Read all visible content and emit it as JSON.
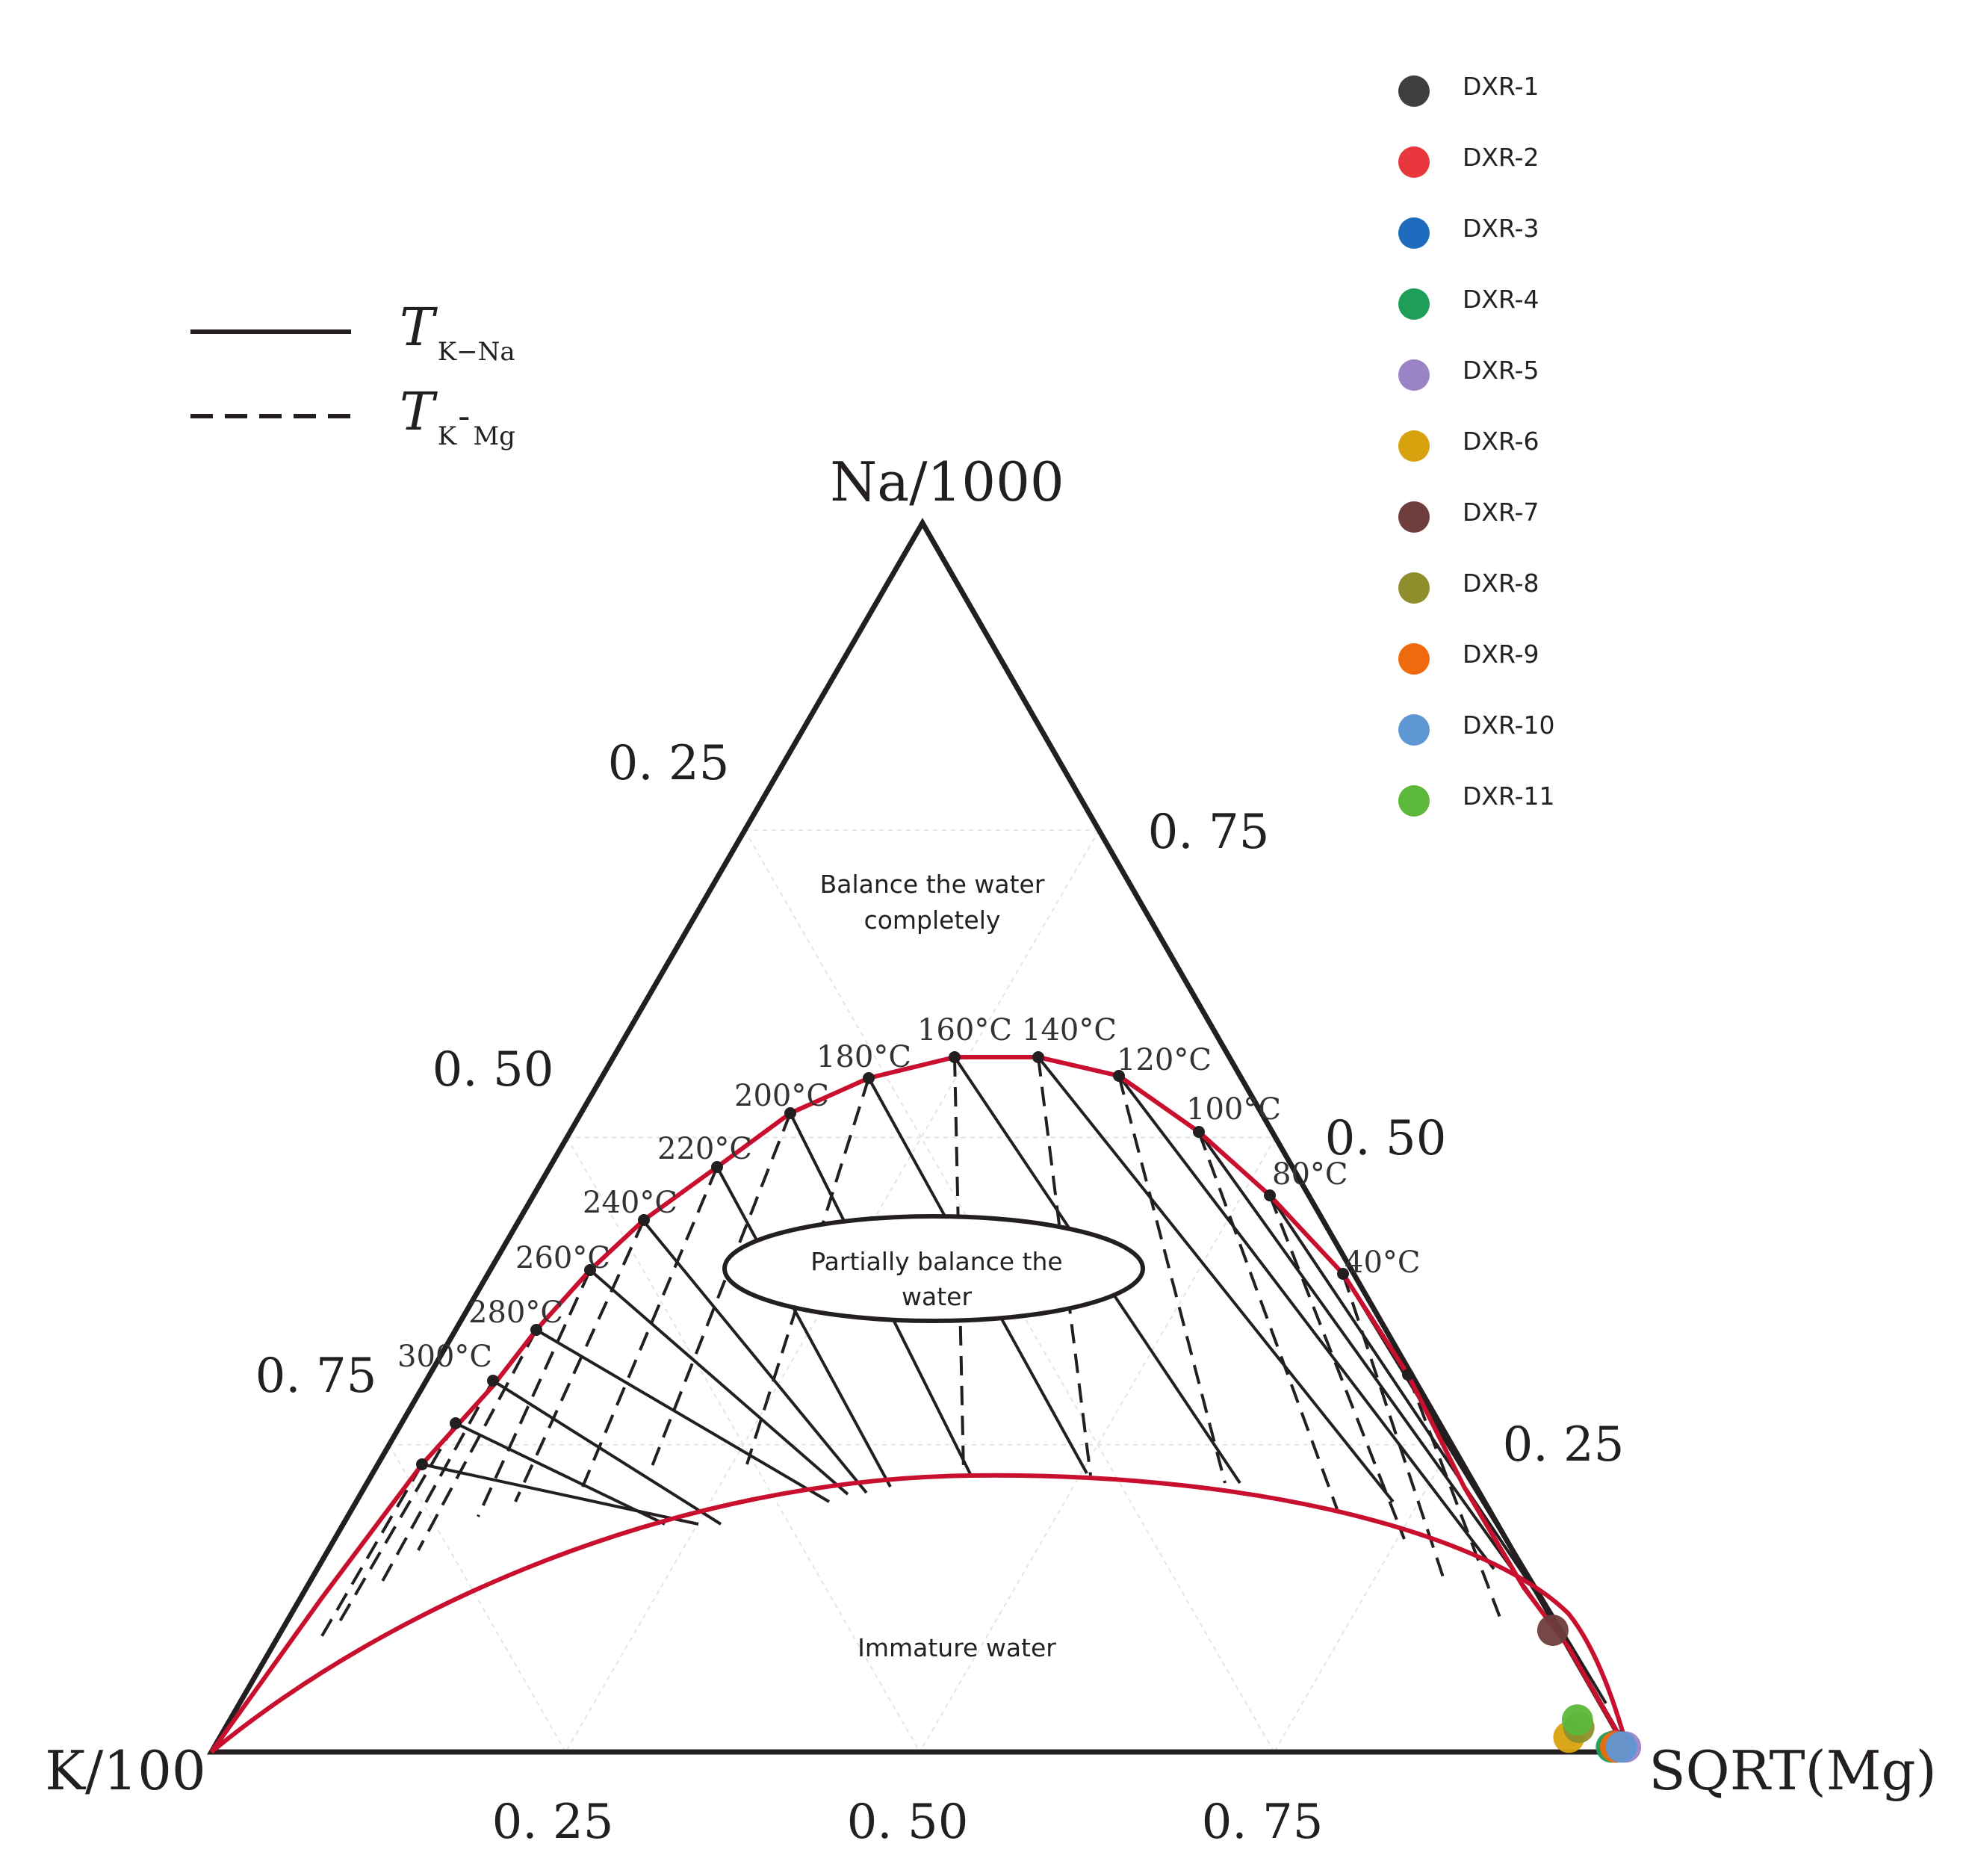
{
  "chart_data": {
    "type": "scatter",
    "subtype": "ternary",
    "vertices": {
      "top": "Na/1000",
      "left": "K/100",
      "right": "SQRT(Mg)"
    },
    "tick_labels": {
      "bottom": [
        "0. 25",
        "0. 50",
        "0. 75"
      ],
      "left": [
        "0. 25",
        "0. 50",
        "0. 75"
      ],
      "right": [
        "0. 75",
        "0. 50",
        "0. 25"
      ]
    },
    "line_legend": [
      {
        "style": "solid",
        "symbol": "T",
        "sub": "K−Na"
      },
      {
        "style": "dashed",
        "symbol": "T",
        "sub": "K‑Mg",
        "sub_a": "K",
        "sub_sep": "-",
        "sub_b": "Mg"
      }
    ],
    "regions": {
      "full": [
        "Balance the water",
        "completely"
      ],
      "partial": [
        "Partially balance the",
        "water"
      ],
      "immature": "Immature water"
    },
    "temperature_labels": [
      "300°C",
      "280°C",
      "260°C",
      "240°C",
      "220°C",
      "200°C",
      "180°C",
      "160°C",
      "140°C",
      "120°C",
      "100°C",
      "80°C",
      "40°C"
    ],
    "grid": true,
    "legend_position": "top-right",
    "series": [
      {
        "name": "DXR-1",
        "color": "#3f3f3f",
        "na": 0.005,
        "k": 0.005,
        "mg": 0.99
      },
      {
        "name": "DXR-2",
        "color": "#e8383d",
        "na": 0.005,
        "k": 0.007,
        "mg": 0.988
      },
      {
        "name": "DXR-3",
        "color": "#1f6cbf",
        "na": 0.004,
        "k": 0.006,
        "mg": 0.99
      },
      {
        "name": "DXR-4",
        "color": "#1f9e5a",
        "na": 0.004,
        "k": 0.01,
        "mg": 0.986
      },
      {
        "name": "DXR-5",
        "color": "#9b84c6",
        "na": 0.004,
        "k": 0.0,
        "mg": 0.996
      },
      {
        "name": "DXR-6",
        "color": "#d8a20f",
        "na": 0.012,
        "k": 0.036,
        "mg": 0.952
      },
      {
        "name": "DXR-7",
        "color": "#6e3d3d",
        "na": 0.099,
        "k": 0.004,
        "mg": 0.897
      },
      {
        "name": "DXR-8",
        "color": "#8e8e2c",
        "na": 0.02,
        "k": 0.025,
        "mg": 0.955
      },
      {
        "name": "DXR-9",
        "color": "#ef6a0c",
        "na": 0.004,
        "k": 0.007,
        "mg": 0.989
      },
      {
        "name": "DXR-10",
        "color": "#5f97d4",
        "na": 0.004,
        "k": 0.003,
        "mg": 0.993
      },
      {
        "name": "DXR-11",
        "color": "#5cb83a",
        "na": 0.026,
        "k": 0.023,
        "mg": 0.951
      }
    ]
  }
}
